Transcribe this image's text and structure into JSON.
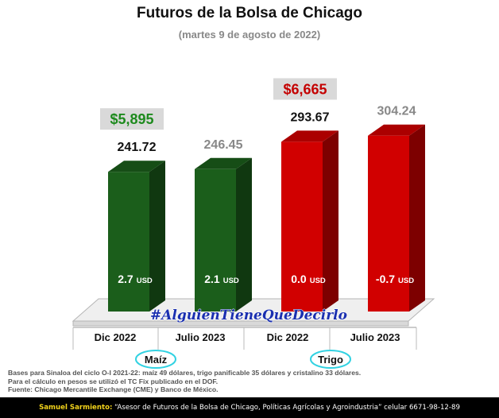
{
  "header": {
    "title": "Futuros de la Bolsa de Chicago",
    "subtitle": "(martes 9 de agosto de 2022)"
  },
  "chart_data": {
    "type": "bar",
    "title": "Futuros de la Bolsa de Chicago",
    "subtitle": "(martes 9 de agosto de 2022)",
    "categories": [
      "Dic 2022",
      "Julio 2023",
      "Dic 2022",
      "Julio 2023"
    ],
    "groups": [
      {
        "label": "Maíz",
        "categories": [
          "Dic 2022",
          "Julio 2023"
        ]
      },
      {
        "label": "Trigo",
        "categories": [
          "Dic 2022",
          "Julio 2023"
        ]
      }
    ],
    "values": [
      241.72,
      246.45,
      293.67,
      304.24
    ],
    "value_labels": [
      "241.72",
      "246.45",
      "293.67",
      "304.24"
    ],
    "change_labels": [
      "2.7",
      "2.1",
      "0.0",
      "-0.7"
    ],
    "change_unit": "USD",
    "price_badges": [
      {
        "category_index": 0,
        "text": "$5,895",
        "color": "#1d8a1d"
      },
      {
        "category_index": 2,
        "text": "$6,665",
        "color": "#c40000"
      }
    ],
    "value_label_colors": [
      "#111111",
      "#888888",
      "#111111",
      "#888888"
    ],
    "bar_colors": [
      "#1b5e1b",
      "#1b5e1b",
      "#d10000",
      "#d10000"
    ],
    "watermark": "#AlguienTieneQueDecirlo",
    "ylim": [
      0,
      330
    ]
  },
  "notes": [
    "Bases para Sinaloa del ciclo O-I 2021-22: maíz 49 dólares, trigo panificable 35 dólares y cristalino 33 dólares.",
    "Para el cálculo en pesos se utilizó el TC Fix publicado en el DOF.",
    "Fuente: Chicago Mercantile Exchange (CME) y Banco de México."
  ],
  "footer": {
    "name": "Samuel Sarmiento:",
    "text": " “Asesor de Futuros de la Bolsa de Chicago, Políticas Agrícolas y Agroindustria” celular 6671-98-12-89"
  }
}
